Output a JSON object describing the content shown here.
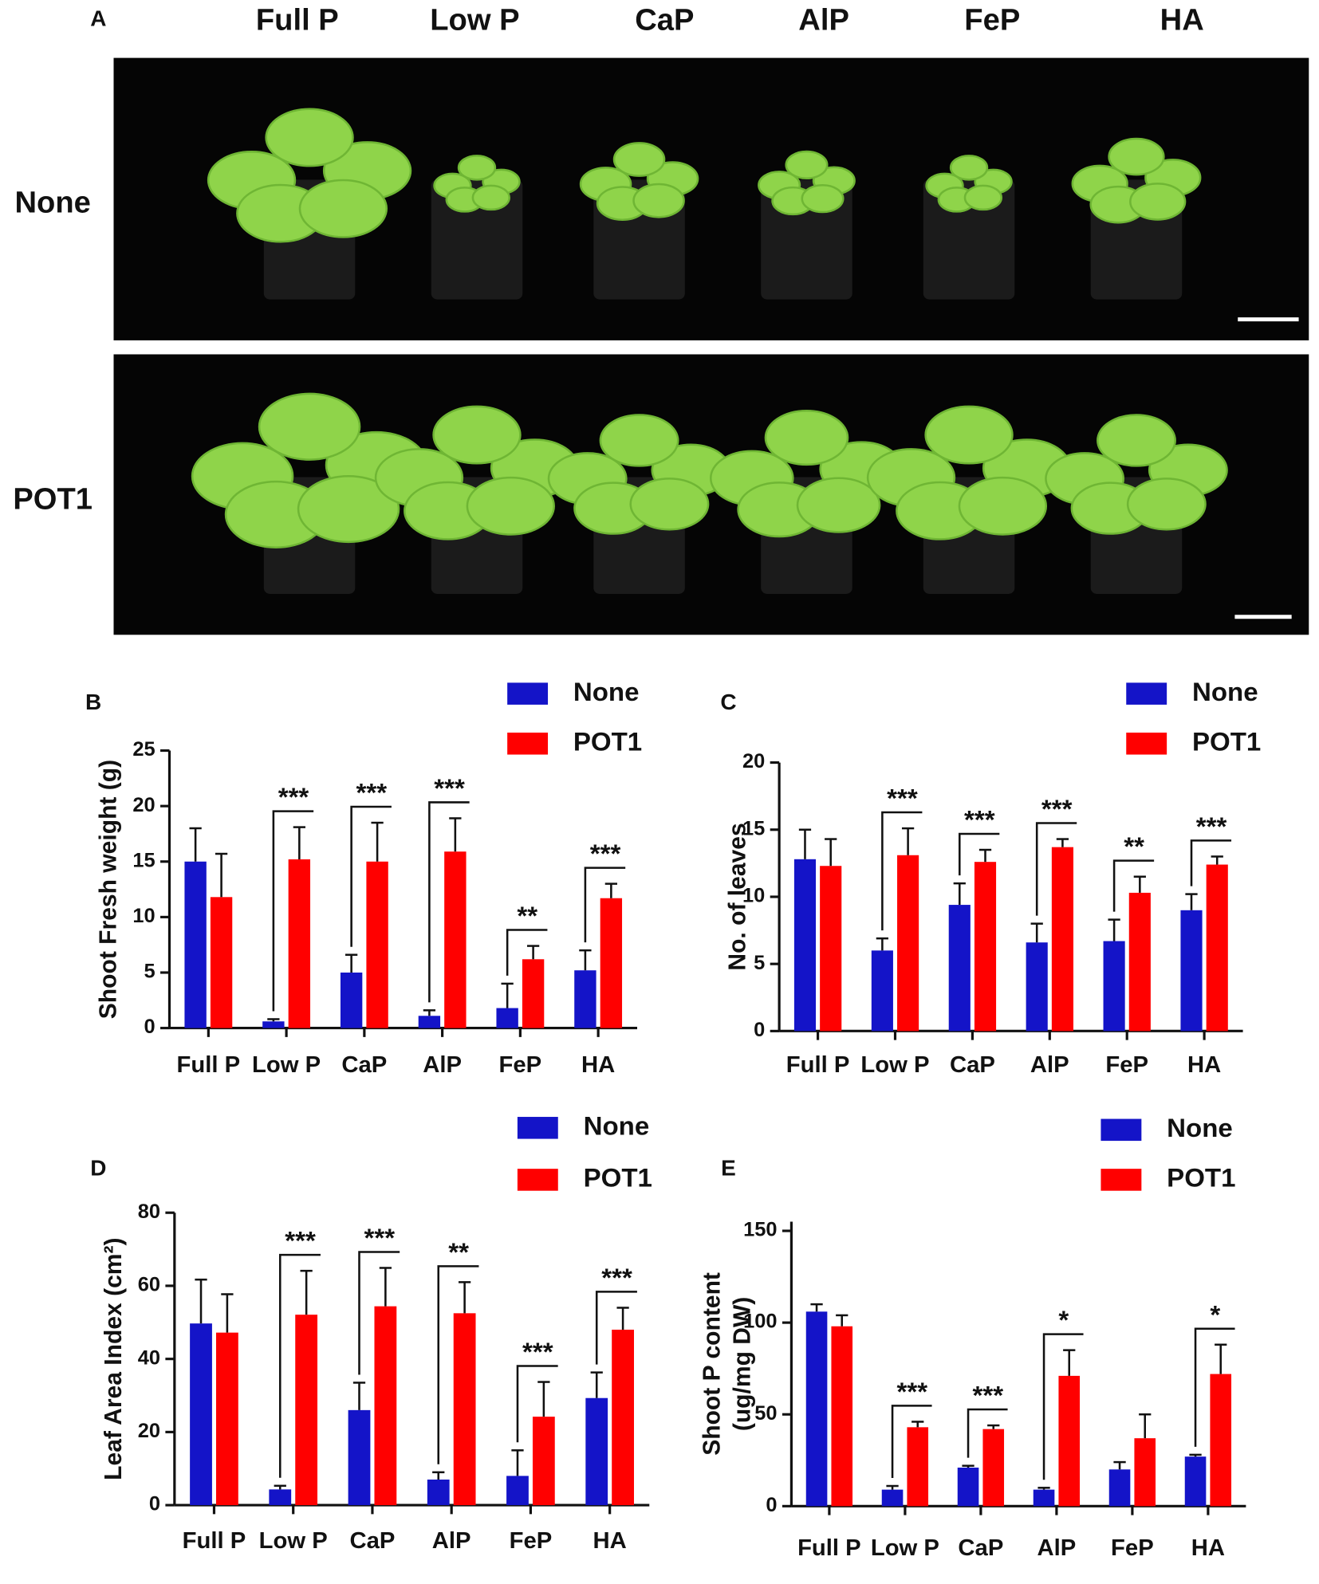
{
  "panel_a": {
    "label": "A",
    "columns": [
      "Full P",
      "Low P",
      "CaP",
      "AlP",
      "FeP",
      "HA"
    ],
    "rows": [
      "None",
      "POT1"
    ]
  },
  "chart_data": [
    {
      "type": "bar",
      "label": "B",
      "y_label": [
        "Shoot Fresh weight (g)"
      ],
      "categories": [
        "Full P",
        "Low P",
        "CaP",
        "AlP",
        "FeP",
        "HA"
      ],
      "series": [
        {
          "name": "None",
          "color": "#1414c8",
          "values": [
            15,
            0.6,
            5,
            1.1,
            1.8,
            5.2
          ],
          "errors": [
            3,
            0.2,
            1.6,
            0.5,
            2.2,
            1.8
          ]
        },
        {
          "name": "POT1",
          "color": "#ff0000",
          "values": [
            11.8,
            15.2,
            15,
            15.9,
            6.2,
            11.7
          ],
          "errors": [
            3.9,
            2.9,
            3.5,
            3,
            1.2,
            1.3
          ]
        }
      ],
      "significance": [
        null,
        "***",
        "***",
        "***",
        "**",
        "***"
      ],
      "ylim": [
        0,
        25
      ],
      "yticks": [
        0,
        5,
        10,
        15,
        20,
        25
      ]
    },
    {
      "type": "bar",
      "label": "C",
      "y_label": [
        "No. of leaves"
      ],
      "categories": [
        "Full P",
        "Low P",
        "CaP",
        "AlP",
        "FeP",
        "HA"
      ],
      "series": [
        {
          "name": "None",
          "color": "#1414c8",
          "values": [
            12.8,
            6,
            9.4,
            6.6,
            6.7,
            9
          ],
          "errors": [
            2.2,
            0.9,
            1.6,
            1.4,
            1.6,
            1.2
          ]
        },
        {
          "name": "POT1",
          "color": "#ff0000",
          "values": [
            12.3,
            13.1,
            12.6,
            13.7,
            10.3,
            12.4
          ],
          "errors": [
            2,
            2,
            0.9,
            0.6,
            1.2,
            0.6
          ]
        }
      ],
      "significance": [
        null,
        "***",
        "***",
        "***",
        "**",
        "***"
      ],
      "ylim": [
        0,
        20
      ],
      "yticks": [
        0,
        5,
        10,
        15,
        20
      ]
    },
    {
      "type": "bar",
      "label": "D",
      "y_label": [
        "Leaf  Area Index (cm²)"
      ],
      "categories": [
        "Full P",
        "Low P",
        "CaP",
        "AlP",
        "FeP",
        "HA"
      ],
      "series": [
        {
          "name": "None",
          "color": "#1414c8",
          "values": [
            49.7,
            4.3,
            26,
            7,
            8,
            29.3
          ],
          "errors": [
            12,
            1,
            7.5,
            2,
            7,
            7
          ]
        },
        {
          "name": "POT1",
          "color": "#ff0000",
          "values": [
            47.2,
            52.1,
            54.4,
            52.5,
            24.2,
            48
          ],
          "errors": [
            10.5,
            12,
            10.5,
            8.5,
            9.5,
            6
          ]
        }
      ],
      "significance": [
        null,
        "***",
        "***",
        "**",
        "***",
        "***"
      ],
      "ylim": [
        0,
        80
      ],
      "yticks": [
        0,
        20,
        40,
        60,
        80
      ]
    },
    {
      "type": "bar",
      "label": "E",
      "y_label": [
        "Shoot P content",
        "(ug/mg DW)"
      ],
      "categories": [
        "Full P",
        "Low P",
        "CaP",
        "AlP",
        "FeP",
        "HA"
      ],
      "series": [
        {
          "name": "None",
          "color": "#1414c8",
          "values": [
            106,
            9,
            21,
            9,
            20,
            27
          ],
          "errors": [
            4,
            2,
            1,
            1,
            4,
            1
          ]
        },
        {
          "name": "POT1",
          "color": "#ff0000",
          "values": [
            98,
            43,
            42,
            71,
            37,
            72
          ],
          "errors": [
            6,
            3,
            2,
            14,
            13,
            16
          ]
        }
      ],
      "significance": [
        null,
        "***",
        "***",
        "*",
        null,
        "*"
      ],
      "ylim": [
        0,
        155
      ],
      "yticks": [
        0,
        50,
        100,
        150
      ]
    }
  ]
}
